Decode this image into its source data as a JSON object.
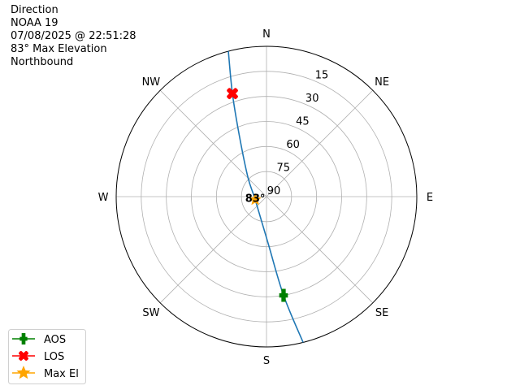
{
  "title_lines": [
    "Direction",
    "NOAA 19",
    "07/08/2025 @ 22:51:28",
    "83° Max Elevation",
    "Northbound"
  ],
  "chart_data": {
    "type": "polar",
    "theta_direction": "clockwise",
    "theta_zero": "N",
    "direction_labels": [
      "N",
      "NE",
      "E",
      "SE",
      "S",
      "SW",
      "W",
      "NW"
    ],
    "radial_axis": "elevation (deg), 90 at center",
    "radial_ticks": [
      90,
      75,
      60,
      45,
      30,
      15
    ],
    "rlim": [
      0,
      90
    ],
    "grid": true,
    "track_color": "#1f77b4",
    "track": [
      {
        "az": 345.3,
        "el": 0
      },
      {
        "az": 341.7,
        "el": 25
      },
      {
        "az": 336,
        "el": 50
      },
      {
        "az": 316,
        "el": 74
      },
      {
        "az": 255,
        "el": 83
      },
      {
        "az": 178,
        "el": 62
      },
      {
        "az": 170.2,
        "el": 30
      },
      {
        "az": 165.9,
        "el": 0
      }
    ],
    "markers": [
      {
        "name": "AOS",
        "az": 170.2,
        "el": 30,
        "color": "#008000",
        "shape": "plus"
      },
      {
        "name": "LOS",
        "az": 341.7,
        "el": 25,
        "color": "#ff0000",
        "shape": "x"
      },
      {
        "name": "Max El",
        "az": 255,
        "el": 83,
        "color": "#ffa500",
        "shape": "star"
      }
    ],
    "max_el_label": "83°",
    "legend": [
      "AOS",
      "LOS",
      "Max El"
    ],
    "legend_placement": "lower-left"
  }
}
